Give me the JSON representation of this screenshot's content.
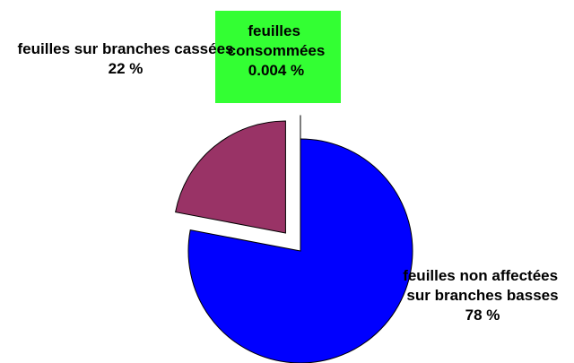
{
  "chart_data": {
    "type": "pie",
    "categories": [
      "feuilles non affectées sur branches basses",
      "feuilles sur branches cassées",
      "feuilles consommées"
    ],
    "values": [
      78,
      22,
      0.004
    ],
    "value_labels": [
      "78 %",
      "22 %",
      "0.004 %"
    ],
    "colors": [
      "#0000ff",
      "#993366",
      "#ffffcc"
    ]
  }
}
